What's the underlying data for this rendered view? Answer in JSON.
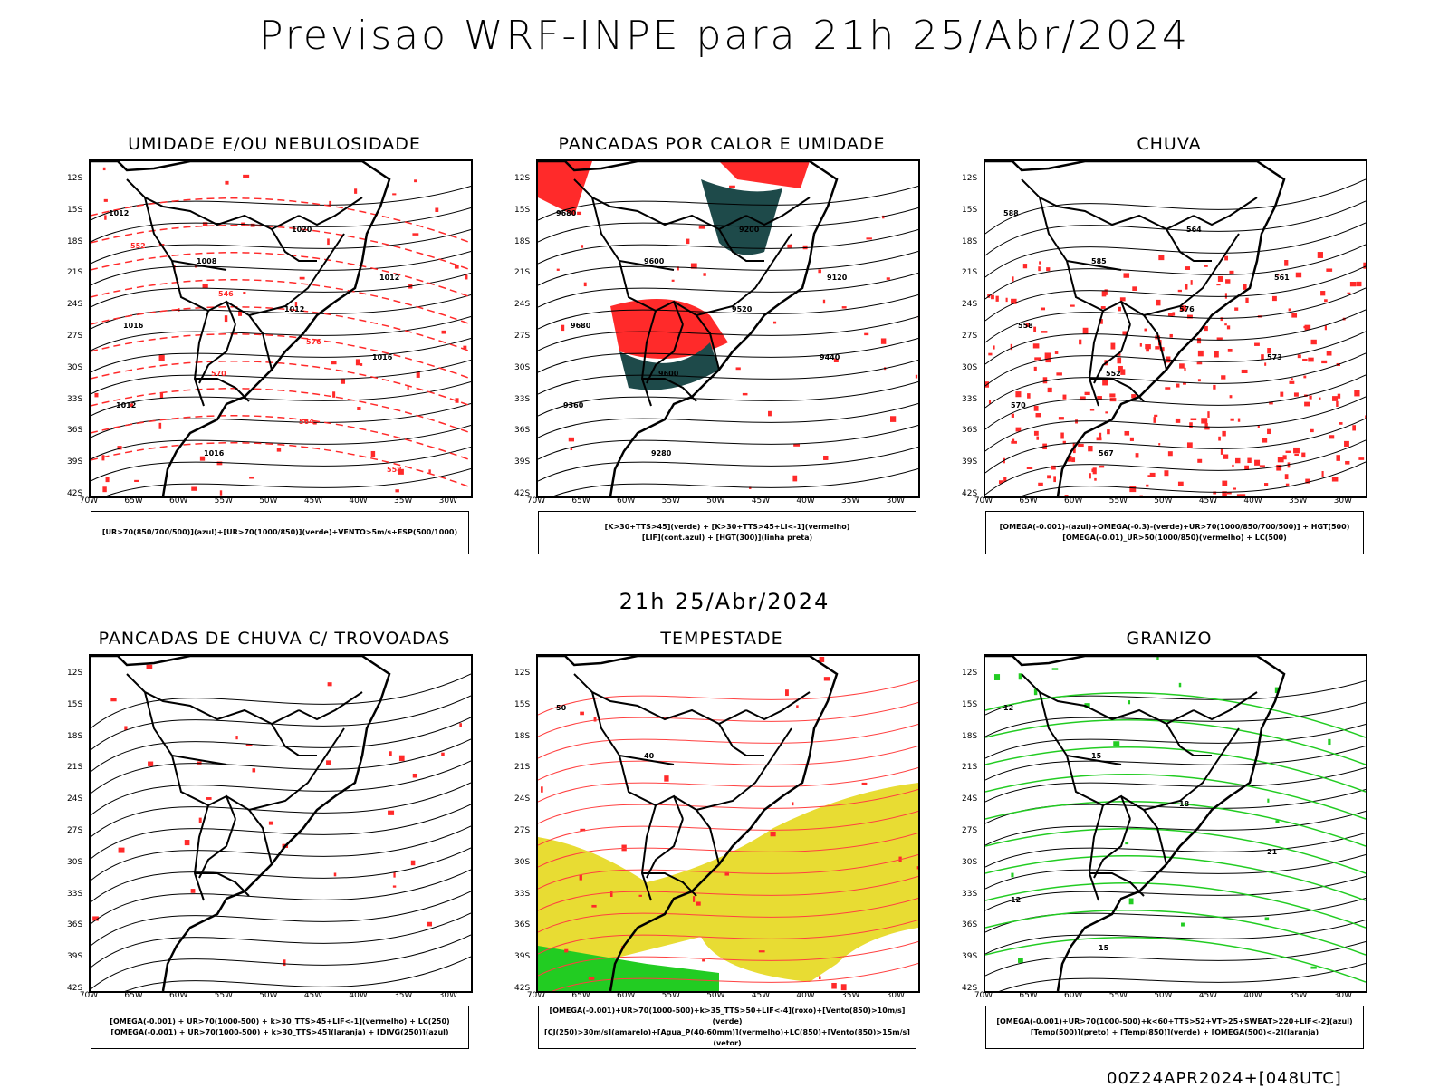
{
  "title": "Previsao WRF-INPE  para 21h 25/Abr/2024",
  "mid_title": "21h 25/Abr/2024",
  "footer": "00Z24APR2024+[048UTC]",
  "lat_labels": [
    "12S",
    "15S",
    "18S",
    "21S",
    "24S",
    "27S",
    "30S",
    "33S",
    "36S",
    "39S",
    "42S"
  ],
  "lon_labels": [
    "70W",
    "65W",
    "60W",
    "55W",
    "50W",
    "45W",
    "40W",
    "35W",
    "30W"
  ],
  "colors": {
    "red": "#ff2a2a",
    "green": "#22cc22",
    "blue": "#2a4bff",
    "lavender": "#b0b0ff",
    "teal": "#1e4a4a",
    "yellow": "#e8dc33"
  },
  "panels": [
    {
      "title": "UMIDADE E/OU NEBULOSIDADE",
      "legend": [
        "[UR>70(850/700/500)](azul)+[UR>70(1000/850)](verde)+VENTO>5m/s+ESP(500/1000)"
      ],
      "labels": [
        "1012",
        "1008",
        "1012",
        "1016",
        "1012",
        "1016",
        "1020",
        "1012",
        "1016",
        "570",
        "564",
        "558",
        "552",
        "546",
        "576"
      ]
    },
    {
      "title": "PANCADAS POR CALOR E UMIDADE",
      "legend": [
        "[K>30+TTS>45](verde) + [K>30+TTS>45+LI<-1](vermelho)",
        "[LIF](cont.azul) + [HGT(300)](linha preta)"
      ],
      "labels": [
        "9680",
        "9600",
        "9520",
        "9440",
        "9360",
        "9280",
        "9200",
        "9120",
        "9680",
        "9600"
      ]
    },
    {
      "title": "CHUVA",
      "legend": [
        "[OMEGA(-0.001)-(azul)+OMEGA(-0.3)-(verde)+UR>70(1000/850/700/500)] + HGT(500)",
        "[OMEGA(-0.01)_UR>50(1000/850)(vermelho) + LC(500)"
      ],
      "labels": [
        "588",
        "585",
        "576",
        "573",
        "570",
        "567",
        "564",
        "561",
        "558",
        "552"
      ]
    },
    {
      "title": "PANCADAS DE CHUVA C/ TROVOADAS",
      "legend": [
        "[OMEGA(-0.001) + UR>70(1000-500) + k>30_TTS>45+LIF<-1](vermelho) + LC(250)",
        "[OMEGA(-0.001) + UR>70(1000-500) + k>30_TTS>45](laranja) + [DIVG(250)](azul)"
      ],
      "labels": []
    },
    {
      "title": "TEMPESTADE",
      "legend": [
        "[OMEGA(-0.001)+UR>70(1000-500)+k>35_TTS>50+LIF<-4](roxo)+[Vento(850)>10m/s](verde)",
        "[CJ(250)>30m/s](amarelo)+[Agua_P(40-60mm)](vermelho)+LC(850)+[Vento(850)>15m/s](vetor)"
      ],
      "labels": [
        "50",
        "40"
      ]
    },
    {
      "title": "GRANIZO",
      "legend": [
        "[OMEGA(-0.001)+UR>70(1000-500)+k<60+TTS>52+VT>25+SWEAT>220+LIF<-2](azul)",
        "[Temp(500)](preto) + [Temp(850)](verde) + [OMEGA(500)<-2](laranja)"
      ],
      "labels": [
        "12",
        "15",
        "18",
        "21",
        "12",
        "15"
      ]
    }
  ]
}
